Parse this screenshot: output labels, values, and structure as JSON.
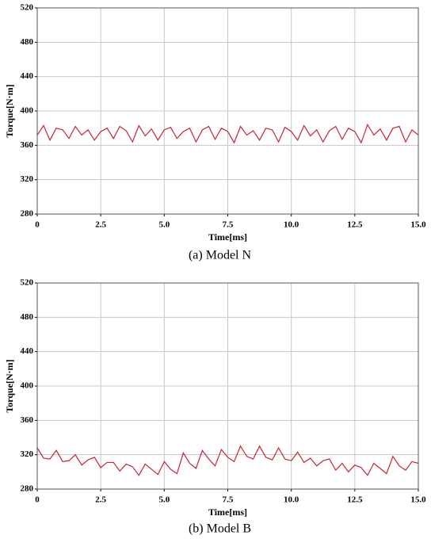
{
  "chart_data": [
    {
      "type": "line",
      "caption": "(a) Model N",
      "xlabel": "Time[ms]",
      "ylabel": "Torque[N·m]",
      "color": "#cc2233",
      "grid": true,
      "x": [
        0,
        0.25,
        0.5,
        0.75,
        1,
        1.25,
        1.5,
        1.75,
        2,
        2.25,
        2.5,
        2.75,
        3,
        3.25,
        3.5,
        3.75,
        4,
        4.25,
        4.5,
        4.75,
        5,
        5.25,
        5.5,
        5.75,
        6,
        6.25,
        6.5,
        6.75,
        7,
        7.25,
        7.5,
        7.75,
        8,
        8.25,
        8.5,
        8.75,
        9,
        9.25,
        9.5,
        9.75,
        10,
        10.25,
        10.5,
        10.75,
        11,
        11.25,
        11.5,
        11.75,
        12,
        12.25,
        12.5,
        12.75,
        13,
        13.25,
        13.5,
        13.75,
        14,
        14.25,
        14.5,
        14.75,
        15
      ],
      "values": [
        372,
        383,
        366,
        380,
        378,
        368,
        382,
        372,
        378,
        366,
        376,
        380,
        368,
        382,
        377,
        364,
        383,
        371,
        379,
        366,
        378,
        381,
        368,
        376,
        380,
        364,
        378,
        382,
        367,
        380,
        376,
        363,
        382,
        372,
        377,
        366,
        380,
        378,
        364,
        381,
        376,
        366,
        383,
        371,
        378,
        364,
        377,
        382,
        367,
        380,
        376,
        363,
        384,
        372,
        379,
        366,
        380,
        382,
        364,
        378,
        372
      ],
      "xlim": [
        0,
        15
      ],
      "xticks": [
        0,
        2.5,
        {
          "value": 5,
          "label": "5.0"
        },
        7.5,
        {
          "value": 10,
          "label": "10.0"
        },
        12.5,
        {
          "value": 15,
          "label": "15.0"
        }
      ],
      "ylim": [
        280,
        520
      ],
      "yticks": [
        280,
        320,
        360,
        400,
        440,
        480,
        520
      ]
    },
    {
      "type": "line",
      "caption": "(b) Model B",
      "xlabel": "Time[ms]",
      "ylabel": "Torque[N·m]",
      "color": "#cc2233",
      "grid": true,
      "x": [
        0,
        0.25,
        0.5,
        0.75,
        1,
        1.25,
        1.5,
        1.75,
        2,
        2.25,
        2.5,
        2.75,
        3,
        3.25,
        3.5,
        3.75,
        4,
        4.25,
        4.5,
        4.75,
        5,
        5.25,
        5.5,
        5.75,
        6,
        6.25,
        6.5,
        6.75,
        7,
        7.25,
        7.5,
        7.75,
        8,
        8.25,
        8.5,
        8.75,
        9,
        9.25,
        9.5,
        9.75,
        10,
        10.25,
        10.5,
        10.75,
        11,
        11.25,
        11.5,
        11.75,
        12,
        12.25,
        12.5,
        12.75,
        13,
        13.25,
        13.5,
        13.75,
        14,
        14.25,
        14.5,
        14.75,
        15
      ],
      "values": [
        328,
        316,
        315,
        325,
        312,
        313,
        320,
        308,
        314,
        317,
        305,
        311,
        311,
        301,
        309,
        306,
        296,
        309,
        303,
        297,
        312,
        303,
        298,
        322,
        310,
        304,
        325,
        315,
        307,
        326,
        317,
        312,
        330,
        318,
        315,
        330,
        317,
        314,
        328,
        315,
        313,
        323,
        311,
        316,
        307,
        313,
        315,
        302,
        310,
        300,
        308,
        305,
        296,
        310,
        304,
        298,
        318,
        307,
        302,
        312,
        310
      ],
      "xlim": [
        0,
        15
      ],
      "xticks": [
        0,
        2.5,
        {
          "value": 5,
          "label": "5.0"
        },
        7.5,
        {
          "value": 10,
          "label": "10.0"
        },
        12.5,
        {
          "value": 15,
          "label": "15.0"
        }
      ],
      "ylim": [
        280,
        520
      ],
      "yticks": [
        280,
        320,
        360,
        400,
        440,
        480,
        520
      ]
    }
  ]
}
